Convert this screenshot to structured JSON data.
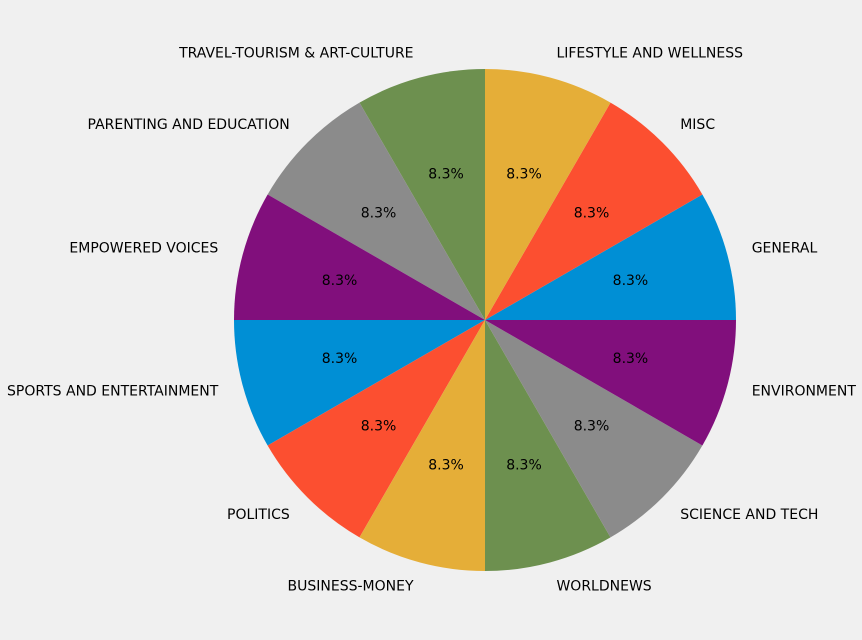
{
  "chart_data": {
    "type": "pie",
    "title": "",
    "start_angle_deg": 0,
    "direction": "counterclockwise",
    "slices": [
      {
        "label": "GENERAL",
        "value": 8.3,
        "pct_label": "8.3%",
        "color": "#008fd5"
      },
      {
        "label": "MISC",
        "value": 8.3,
        "pct_label": "8.3%",
        "color": "#fc4f30"
      },
      {
        "label": "LIFESTYLE AND WELLNESS",
        "value": 8.3,
        "pct_label": "8.3%",
        "color": "#e5ae38"
      },
      {
        "label": "TRAVEL-TOURISM & ART-CULTURE",
        "value": 8.3,
        "pct_label": "8.3%",
        "color": "#6d904f"
      },
      {
        "label": "PARENTING AND EDUCATION",
        "value": 8.3,
        "pct_label": "8.3%",
        "color": "#8b8b8b"
      },
      {
        "label": "EMPOWERED VOICES",
        "value": 8.3,
        "pct_label": "8.3%",
        "color": "#810f7c"
      },
      {
        "label": "SPORTS AND ENTERTAINMENT",
        "value": 8.3,
        "pct_label": "8.3%",
        "color": "#008fd5"
      },
      {
        "label": "POLITICS",
        "value": 8.3,
        "pct_label": "8.3%",
        "color": "#fc4f30"
      },
      {
        "label": "BUSINESS-MONEY",
        "value": 8.3,
        "pct_label": "8.3%",
        "color": "#e5ae38"
      },
      {
        "label": "WORLDNEWS",
        "value": 8.3,
        "pct_label": "8.3%",
        "color": "#6d904f"
      },
      {
        "label": "SCIENCE AND TECH",
        "value": 8.3,
        "pct_label": "8.3%",
        "color": "#8b8b8b"
      },
      {
        "label": "ENVIRONMENT",
        "value": 8.3,
        "pct_label": "8.3%",
        "color": "#810f7c"
      }
    ]
  }
}
